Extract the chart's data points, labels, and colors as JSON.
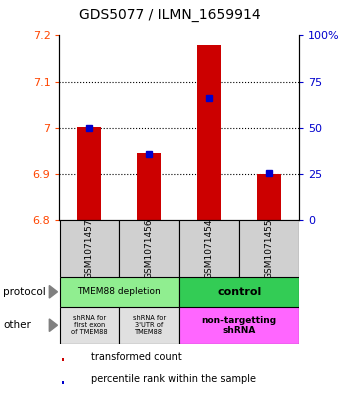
{
  "title": "GDS5077 / ILMN_1659914",
  "samples": [
    "GSM1071457",
    "GSM1071456",
    "GSM1071454",
    "GSM1071455"
  ],
  "bar_bottom": 6.8,
  "red_values": [
    7.002,
    6.945,
    7.18,
    6.9
  ],
  "blue_values": [
    7.0,
    6.944,
    7.065,
    6.903
  ],
  "ylim": [
    6.8,
    7.2
  ],
  "yticks_left": [
    6.8,
    6.9,
    7.0,
    7.1,
    7.2
  ],
  "yticks_right": [
    0,
    25,
    50,
    75,
    100
  ],
  "ytick_labels_left": [
    "6.8",
    "6.9",
    "7",
    "7.1",
    "7.2"
  ],
  "ytick_labels_right": [
    "0",
    "25",
    "50",
    "75",
    "100%"
  ],
  "left_color": "#FF4500",
  "right_color": "#0000CD",
  "bar_color": "#CC0000",
  "blue_marker_color": "#0000CC",
  "protocol_label_depletion": "TMEM88 depletion",
  "protocol_label_control": "control",
  "other_label_1": "shRNA for\nfirst exon\nof TMEM88",
  "other_label_2": "shRNA for\n3'UTR of\nTMEM88",
  "other_label_3": "non-targetting\nshRNA",
  "protocol_color_depletion": "#90EE90",
  "protocol_color_control": "#33CC55",
  "other_color_shrna1": "#E0E0E0",
  "other_color_shrna2": "#E0E0E0",
  "other_color_nontarget": "#FF66FF",
  "legend_red": "transformed count",
  "legend_blue": "percentile rank within the sample",
  "bar_width": 0.4,
  "label_fontsize": 7,
  "tick_fontsize": 8,
  "title_fontsize": 10
}
